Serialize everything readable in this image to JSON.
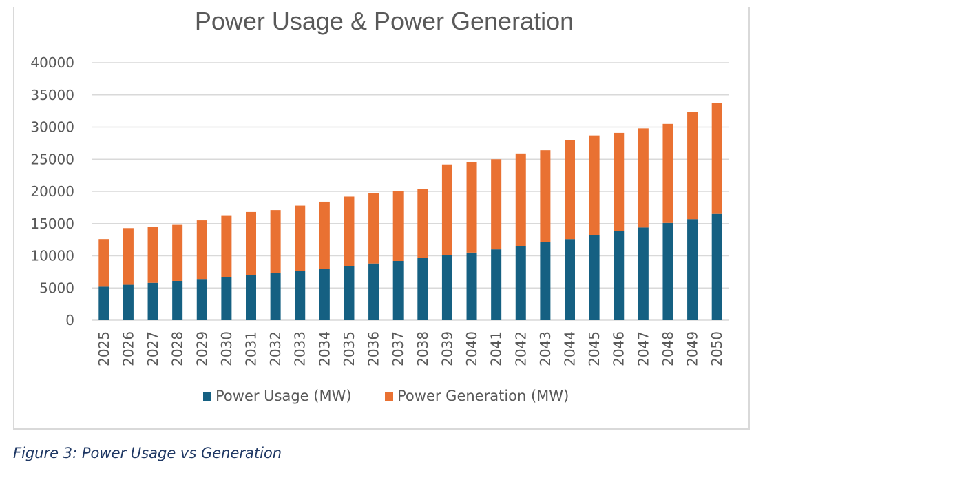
{
  "figure": {
    "caption": "Figure 3: Power Usage vs Generation"
  },
  "chart_data": {
    "type": "bar",
    "stacked": true,
    "title": "Power Usage & Power Generation",
    "xlabel": "",
    "ylabel": "",
    "ylim": [
      0,
      40000
    ],
    "yticks": [
      0,
      5000,
      10000,
      15000,
      20000,
      25000,
      30000,
      35000,
      40000
    ],
    "grid": true,
    "legend_position": "bottom",
    "categories": [
      "2025",
      "2026",
      "2027",
      "2028",
      "2029",
      "2030",
      "2031",
      "2032",
      "2033",
      "2034",
      "2035",
      "2036",
      "2037",
      "2038",
      "2039",
      "2040",
      "2041",
      "2042",
      "2043",
      "2044",
      "2045",
      "2046",
      "2047",
      "2048",
      "2049",
      "2050"
    ],
    "series": [
      {
        "name": "Power Usage (MW)",
        "color": "#156082",
        "values": [
          5200,
          5500,
          5800,
          6100,
          6400,
          6700,
          7000,
          7300,
          7700,
          8000,
          8400,
          8800,
          9200,
          9700,
          10100,
          10500,
          11000,
          11500,
          12100,
          12600,
          13200,
          13800,
          14400,
          15100,
          15700,
          16500
        ]
      },
      {
        "name": "Power Generation (MW)",
        "color": "#E97132",
        "values": [
          7400,
          8800,
          8700,
          8700,
          9100,
          9600,
          9800,
          9800,
          10100,
          10400,
          10800,
          10900,
          10900,
          10700,
          14100,
          14100,
          14000,
          14400,
          14300,
          15400,
          15500,
          15300,
          15400,
          15400,
          16700,
          17200
        ]
      }
    ]
  }
}
